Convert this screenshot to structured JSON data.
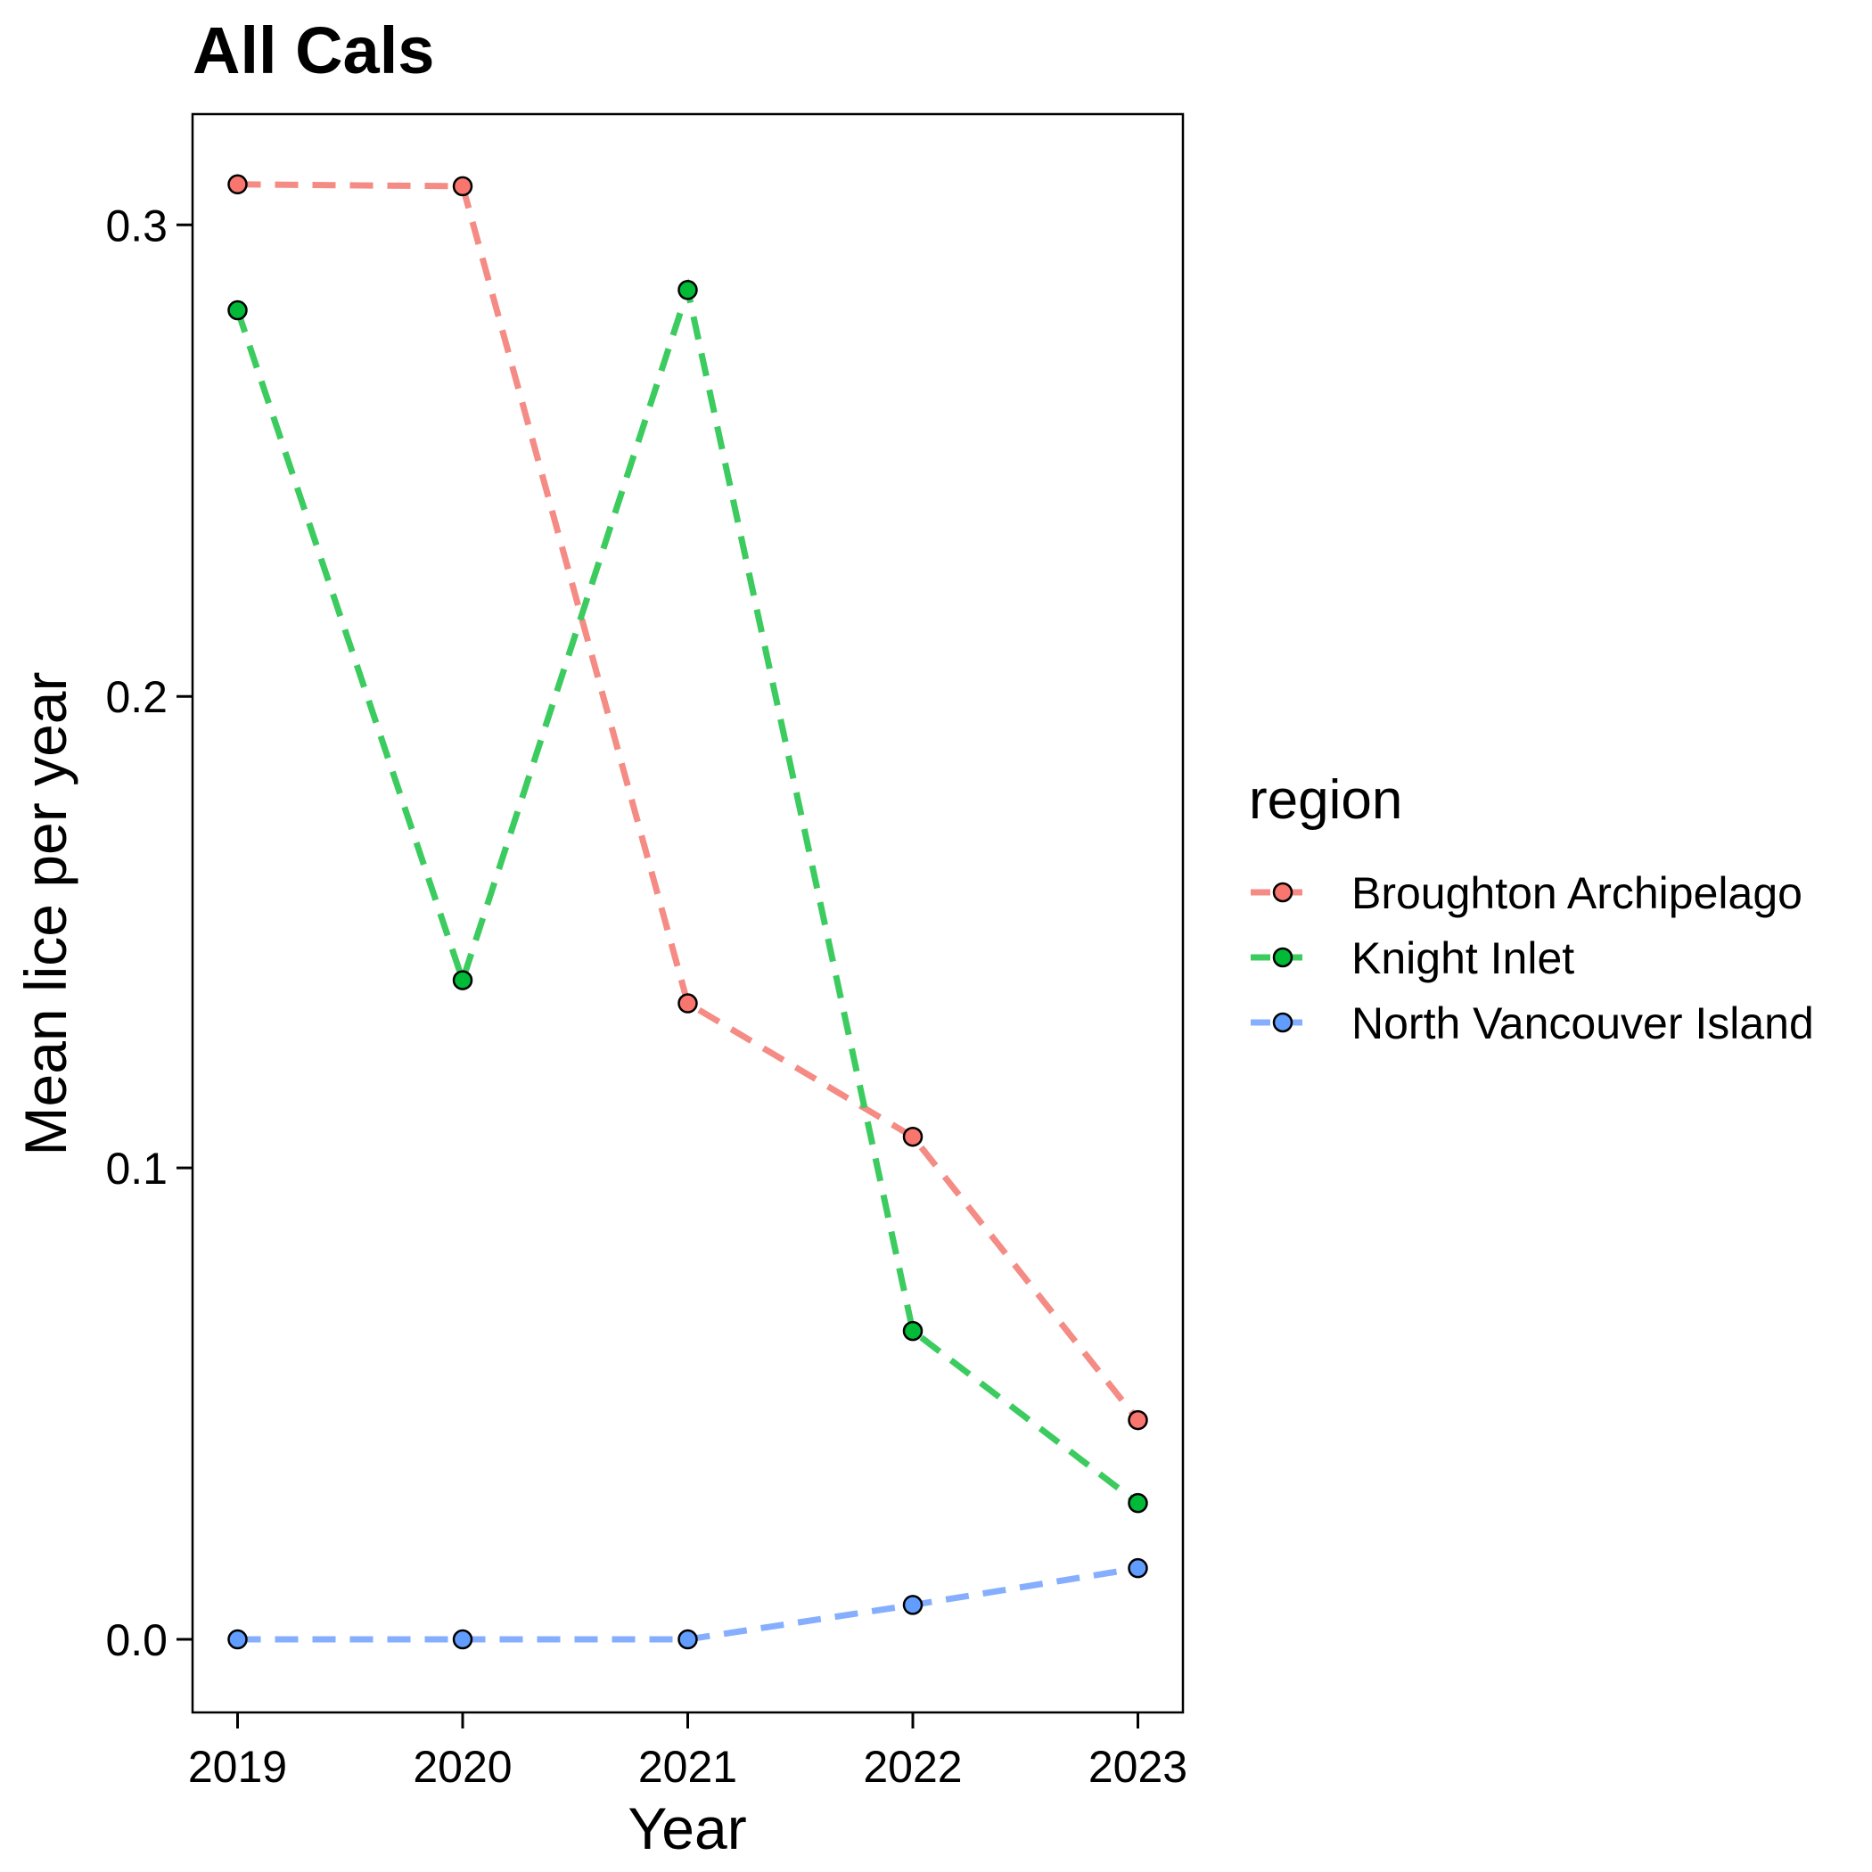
{
  "chart_data": {
    "type": "line",
    "title": "All Cals",
    "xlabel": "Year",
    "ylabel": "Mean lice per year",
    "x": [
      2019,
      2020,
      2021,
      2022,
      2023
    ],
    "x_tick_labels": [
      "2019",
      "2020",
      "2021",
      "2022",
      "2023"
    ],
    "y_ticks": [
      0.0,
      0.1,
      0.2,
      0.3
    ],
    "y_tick_labels": [
      "0.0",
      "0.1",
      "0.2",
      "0.3"
    ],
    "xlim": [
      2018.8,
      2023.2
    ],
    "ylim": [
      -0.0155,
      0.3235
    ],
    "grid": false,
    "line_style": "dashed",
    "legend": {
      "title": "region",
      "placement": "right"
    },
    "series": [
      {
        "name": "Broughton Archipelago",
        "color": "#F8766D",
        "line_color": "#F48B84",
        "values": [
          0.3086,
          0.3082,
          0.1349,
          0.1066,
          0.0465
        ]
      },
      {
        "name": "Knight Inlet",
        "color": "#00BA38",
        "line_color": "#3CCB5F",
        "values": [
          0.2819,
          0.1398,
          0.2862,
          0.0654,
          0.0289
        ]
      },
      {
        "name": "North Vancouver Island",
        "color": "#619CFF",
        "line_color": "#85AEFF",
        "values": [
          0.0,
          0.0,
          0.0,
          0.0073,
          0.0151
        ]
      }
    ]
  }
}
